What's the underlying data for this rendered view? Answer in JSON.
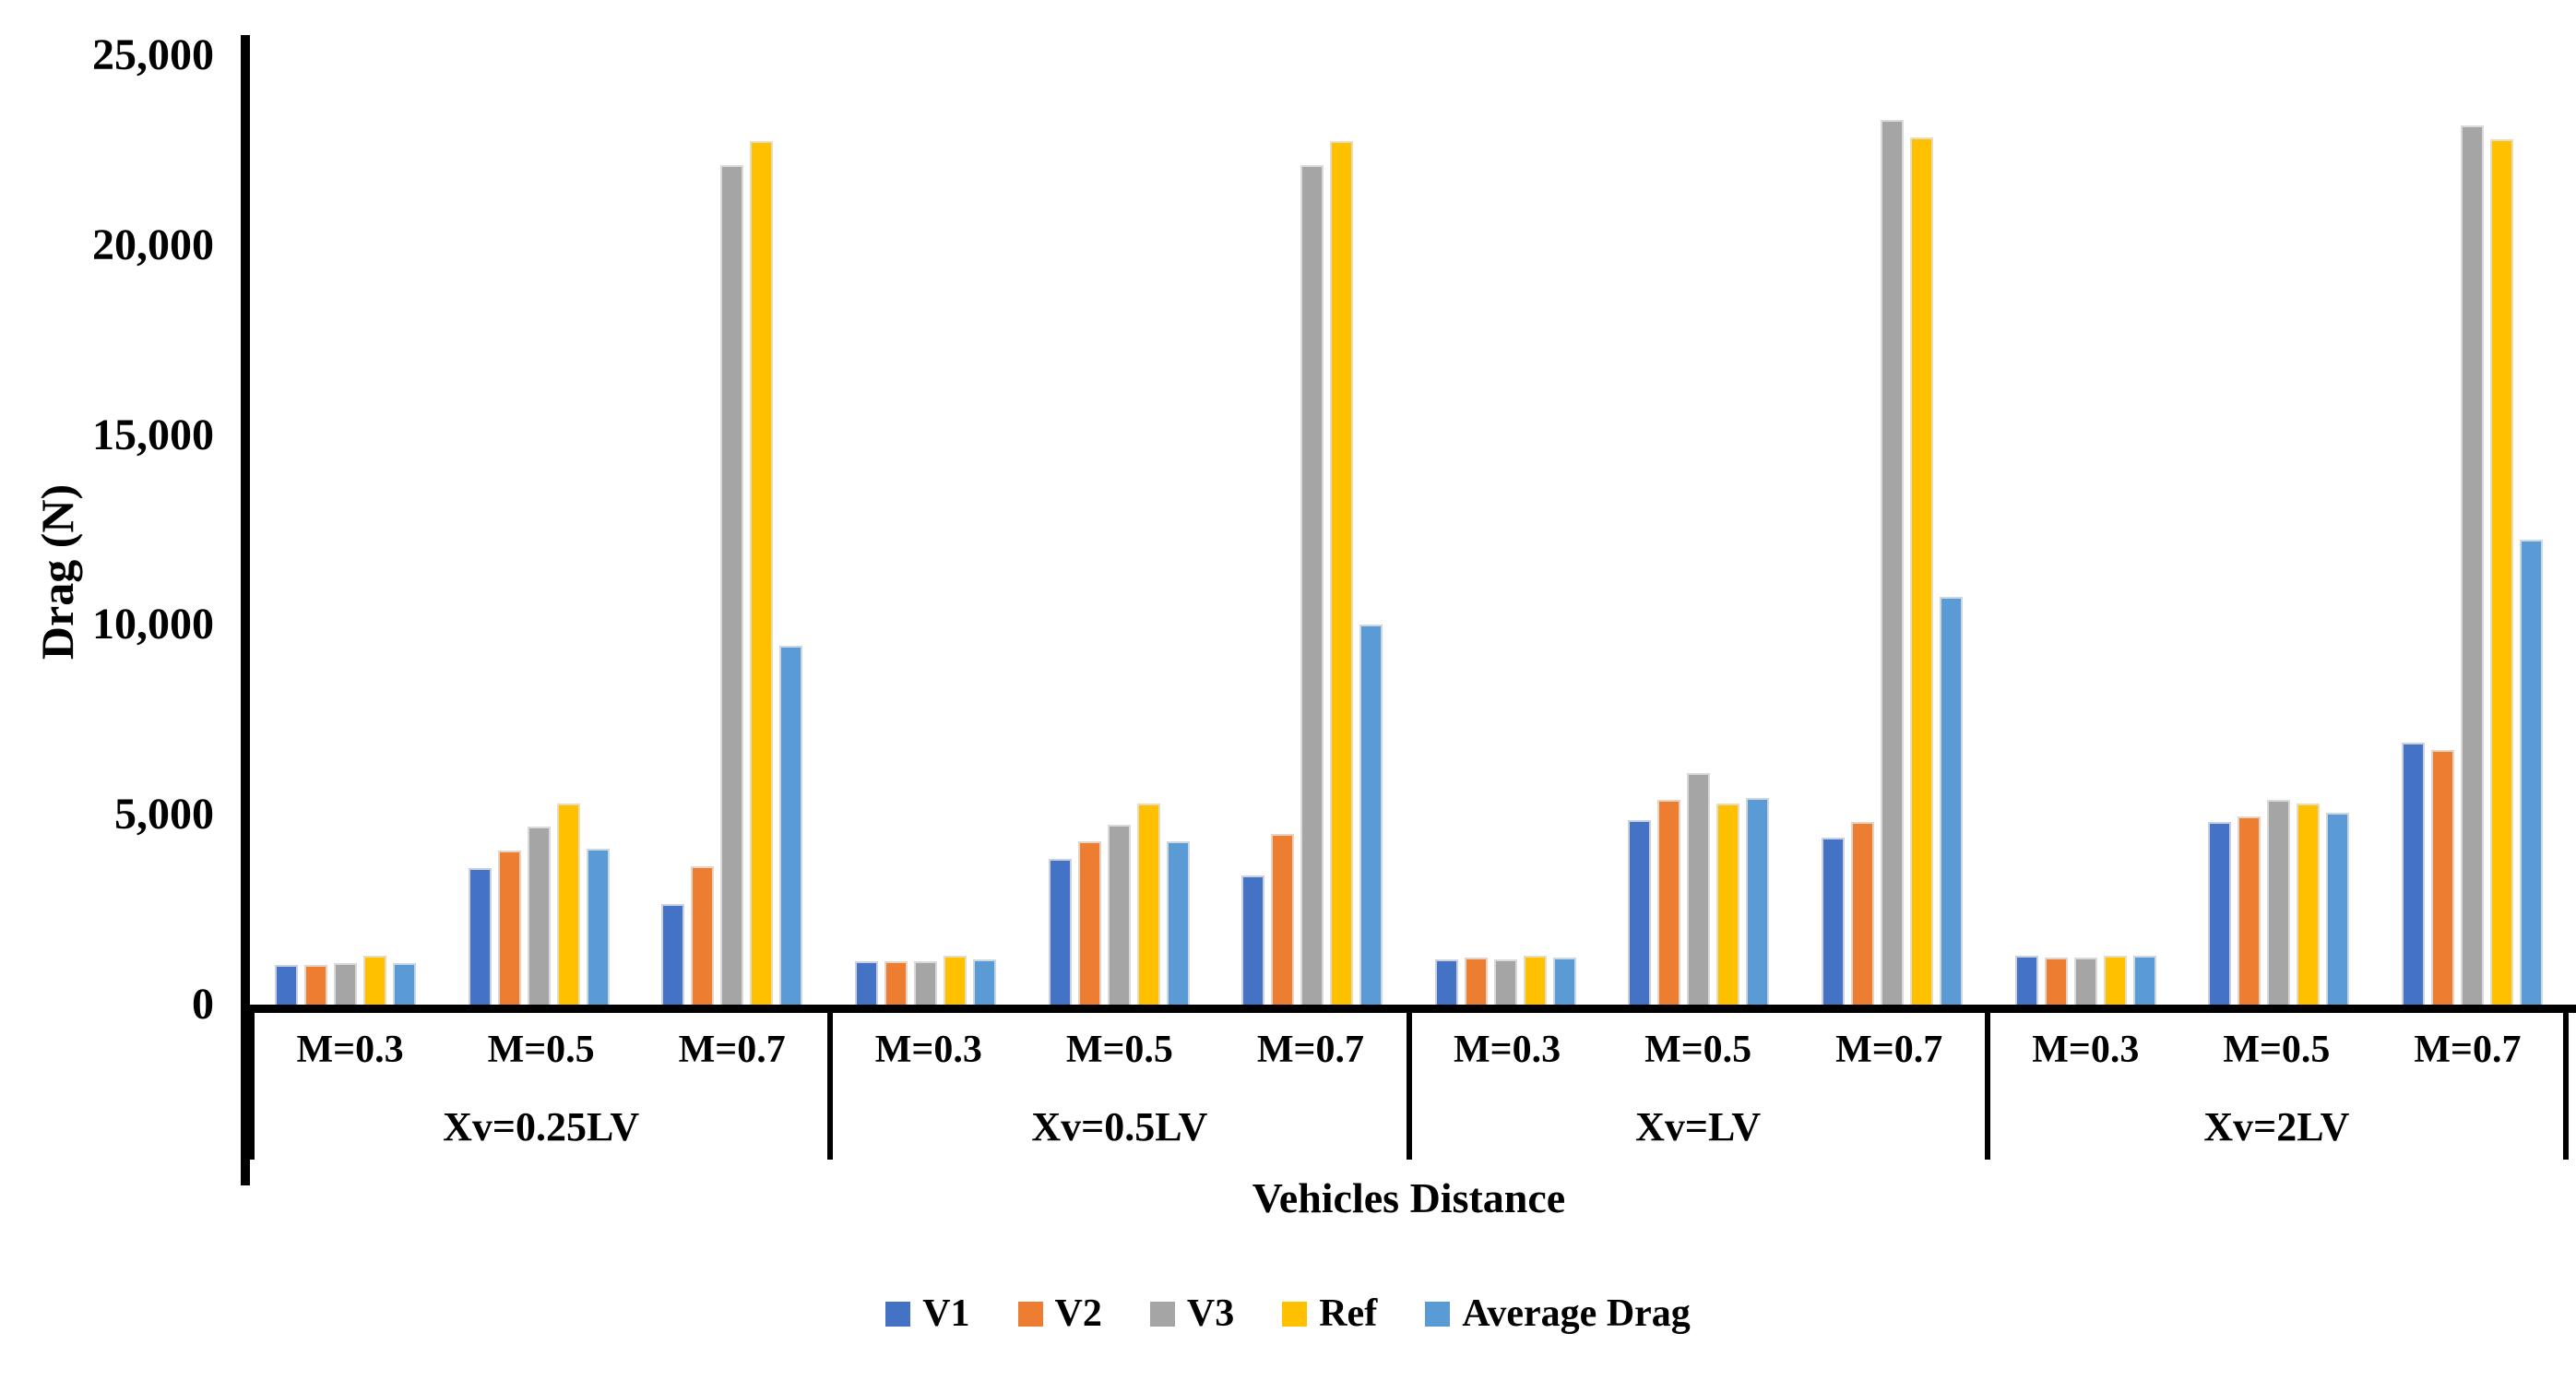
{
  "chart_data": {
    "type": "bar",
    "title": "",
    "xlabel": "Vehicles Distance",
    "ylabel": "Drag (N)",
    "ylim": [
      0,
      25000
    ],
    "y_tick_labels": [
      "0",
      "5,000",
      "10,000",
      "15,000",
      "20,000",
      "25,000"
    ],
    "grid": false,
    "legend_position": "bottom",
    "series": [
      {
        "name": "V1",
        "color": "#4472C4"
      },
      {
        "name": "V2",
        "color": "#ED7D31"
      },
      {
        "name": "V3",
        "color": "#A5A5A5"
      },
      {
        "name": "Ref",
        "color": "#FFC000"
      },
      {
        "name": "Average Drag",
        "color": "#5B9BD5"
      }
    ],
    "groups": [
      {
        "label": "Xv=0.25LV",
        "subgroups": [
          {
            "label": "M=0.3",
            "values": [
              1050,
              1050,
              1100,
              1300,
              1100
            ]
          },
          {
            "label": "M=0.5",
            "values": [
              3600,
              4050,
              4700,
              5300,
              4100
            ]
          },
          {
            "label": "M=0.7",
            "values": [
              2650,
              3650,
              22100,
              22750,
              9450
            ]
          }
        ]
      },
      {
        "label": "Xv=0.5LV",
        "subgroups": [
          {
            "label": "M=0.3",
            "values": [
              1150,
              1150,
              1150,
              1300,
              1200
            ]
          },
          {
            "label": "M=0.5",
            "values": [
              3850,
              4300,
              4750,
              5300,
              4300
            ]
          },
          {
            "label": "M=0.7",
            "values": [
              3400,
              4500,
              22100,
              22750,
              10000
            ]
          }
        ]
      },
      {
        "label": "Xv=LV",
        "subgroups": [
          {
            "label": "M=0.3",
            "values": [
              1200,
              1250,
              1200,
              1300,
              1250
            ]
          },
          {
            "label": "M=0.5",
            "values": [
              4850,
              5400,
              6100,
              5300,
              5450
            ]
          },
          {
            "label": "M=0.7",
            "values": [
              4400,
              4800,
              23300,
              22850,
              10750
            ]
          }
        ]
      },
      {
        "label": "Xv=2LV",
        "subgroups": [
          {
            "label": "M=0.3",
            "values": [
              1300,
              1250,
              1250,
              1300,
              1300
            ]
          },
          {
            "label": "M=0.5",
            "values": [
              4800,
              4950,
              5400,
              5300,
              5050
            ]
          },
          {
            "label": "M=0.7",
            "values": [
              6900,
              6700,
              23150,
              22800,
              12250
            ]
          }
        ]
      }
    ]
  }
}
